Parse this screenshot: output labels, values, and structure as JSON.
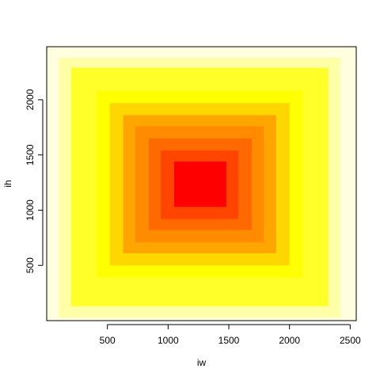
{
  "chart_data": {
    "type": "heatmap",
    "title": "",
    "xlabel": "iw",
    "ylabel": "ih",
    "xlim": [
      0,
      2550
    ],
    "ylim": [
      0,
      2480
    ],
    "x_ticks": [
      500,
      1000,
      1500,
      2000,
      2500
    ],
    "y_ticks": [
      500,
      1000,
      1500,
      2000
    ],
    "x_tick_labels": [
      "500",
      "1000",
      "1500",
      "2000",
      "2500"
    ],
    "y_tick_labels": [
      "500",
      "1000",
      "1500",
      "2000"
    ],
    "grid": false,
    "legend": "none",
    "panel_background": "#FFFFE0",
    "levels": [
      {
        "x0": 100,
        "x1": 2420,
        "y0": 30,
        "y1": 2380,
        "color": "#FFFFA8"
      },
      {
        "x0": 200,
        "x1": 2320,
        "y0": 130,
        "y1": 2290,
        "color": "#FFFF2A"
      },
      {
        "x0": 410,
        "x1": 2110,
        "y0": 390,
        "y1": 2080,
        "color": "#FFFF00"
      },
      {
        "x0": 520,
        "x1": 2000,
        "y0": 500,
        "y1": 1970,
        "color": "#FFD700"
      },
      {
        "x0": 630,
        "x1": 1890,
        "y0": 610,
        "y1": 1860,
        "color": "#FFA500"
      },
      {
        "x0": 730,
        "x1": 1790,
        "y0": 710,
        "y1": 1760,
        "color": "#FF8C00"
      },
      {
        "x0": 840,
        "x1": 1690,
        "y0": 820,
        "y1": 1650,
        "color": "#FF6A00"
      },
      {
        "x0": 940,
        "x1": 1580,
        "y0": 920,
        "y1": 1540,
        "color": "#FF4500"
      },
      {
        "x0": 1050,
        "x1": 1480,
        "y0": 1030,
        "y1": 1440,
        "color": "#FF0000"
      }
    ]
  }
}
